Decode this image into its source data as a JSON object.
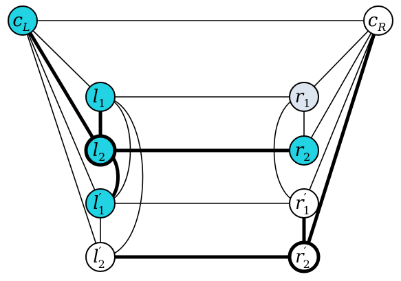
{
  "colors": {
    "cyan": "#21d3e3",
    "light": "#dde6f0",
    "white": "#ffffff",
    "stroke": "#000000"
  },
  "nodes": [
    {
      "id": "cL",
      "base": "c",
      "prime": "",
      "sub": "L",
      "fill": "cyan",
      "bold": false
    },
    {
      "id": "cR",
      "base": "c",
      "prime": "",
      "sub": "R",
      "fill": "white",
      "bold": false
    },
    {
      "id": "l1",
      "base": "l",
      "prime": "",
      "sub": "1",
      "fill": "cyan",
      "bold": false
    },
    {
      "id": "l2",
      "base": "l",
      "prime": "",
      "sub": "2",
      "fill": "cyan",
      "bold": true
    },
    {
      "id": "l1p",
      "base": "l",
      "prime": "′",
      "sub": "1",
      "fill": "cyan",
      "bold": false
    },
    {
      "id": "l2p",
      "base": "l",
      "prime": "′",
      "sub": "2",
      "fill": "white",
      "bold": false
    },
    {
      "id": "r1",
      "base": "r",
      "prime": "",
      "sub": "1",
      "fill": "light",
      "bold": false
    },
    {
      "id": "r2",
      "base": "r",
      "prime": "",
      "sub": "2",
      "fill": "cyan",
      "bold": false
    },
    {
      "id": "r1p",
      "base": "r",
      "prime": "′",
      "sub": "1",
      "fill": "white",
      "bold": false
    },
    {
      "id": "r2p",
      "base": "r",
      "prime": "′",
      "sub": "2",
      "fill": "white",
      "bold": true
    }
  ],
  "edges": [
    {
      "from": "cL",
      "to": "cR",
      "bold": false
    },
    {
      "from": "cL",
      "to": "l1",
      "bold": false
    },
    {
      "from": "cL",
      "to": "l2",
      "bold": true
    },
    {
      "from": "cL",
      "to": "l1p",
      "bold": false
    },
    {
      "from": "cL",
      "to": "l2p",
      "bold": false
    },
    {
      "from": "cR",
      "to": "r1",
      "bold": false
    },
    {
      "from": "cR",
      "to": "r2",
      "bold": false
    },
    {
      "from": "cR",
      "to": "r1p",
      "bold": false
    },
    {
      "from": "cR",
      "to": "r2p",
      "bold": true
    },
    {
      "from": "l1",
      "to": "l2",
      "bold": true
    },
    {
      "from": "l1p",
      "to": "l2p",
      "bold": false
    },
    {
      "from": "r1",
      "to": "r2",
      "bold": false
    },
    {
      "from": "r1p",
      "to": "r2p",
      "bold": true
    },
    {
      "from": "l1",
      "to": "r1",
      "bold": false
    },
    {
      "from": "l2",
      "to": "r2",
      "bold": true
    },
    {
      "from": "l1p",
      "to": "r1p",
      "bold": false
    },
    {
      "from": "l2p",
      "to": "r2p",
      "bold": true
    },
    {
      "from": "l2",
      "to": "l1p",
      "bold": true,
      "curve": "right"
    },
    {
      "from": "l1",
      "to": "l1p",
      "bold": false,
      "curve": "right"
    },
    {
      "from": "l1",
      "to": "l2p",
      "bold": false,
      "curve": "right"
    },
    {
      "from": "r1",
      "to": "r1p",
      "bold": false,
      "curve": "left"
    }
  ]
}
